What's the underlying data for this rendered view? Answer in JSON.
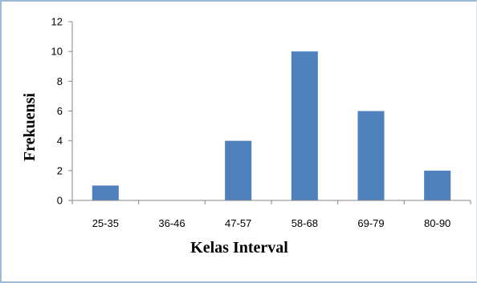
{
  "chart_data": {
    "type": "bar",
    "categories": [
      "25-35",
      "36-46",
      "47-57",
      "58-68",
      "69-79",
      "80-90"
    ],
    "values": [
      1,
      0,
      4,
      10,
      6,
      2
    ],
    "xlabel": "Kelas Interval",
    "ylabel": "Frekuensi",
    "ylim": [
      0,
      12
    ],
    "yticks": [
      "0",
      "2",
      "4",
      "6",
      "8",
      "10",
      "12"
    ],
    "grid": false,
    "legend": "none",
    "bar_color": "#4f81bd"
  }
}
